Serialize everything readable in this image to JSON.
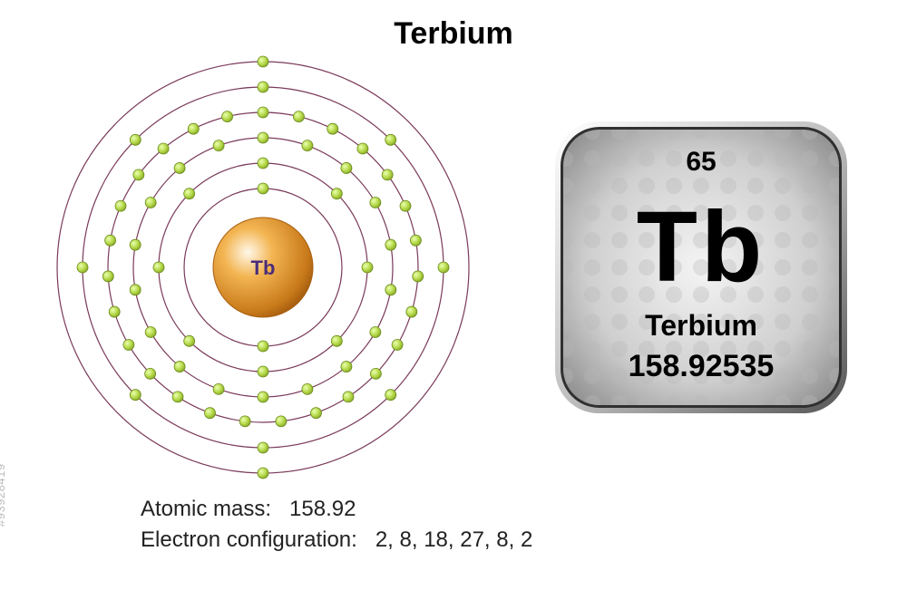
{
  "title": "Terbium",
  "atom": {
    "symbol": "Tb",
    "nucleus_color_inner": "#ffffff",
    "nucleus_color_mid": "#f3b552",
    "nucleus_color_outer": "#c97a1a",
    "nucleus_radius": 55,
    "nucleus_symbol_color": "#4a2e7a",
    "nucleus_symbol_fontsize": 22,
    "shells": [
      {
        "radius": 87,
        "electrons": 2
      },
      {
        "radius": 115,
        "electrons": 8
      },
      {
        "radius": 143,
        "electrons": 18
      },
      {
        "radius": 171,
        "electrons": 27
      },
      {
        "radius": 199,
        "electrons": 8
      },
      {
        "radius": 227,
        "electrons": 2
      }
    ],
    "shell_stroke": "#7a3a5a",
    "shell_stroke_width": 1.2,
    "electron_fill": "#b5d94a",
    "electron_stroke": "#6a8a1a",
    "electron_radius": 6
  },
  "info": {
    "atomic_mass_label": "Atomic mass:",
    "atomic_mass_value": "158.92",
    "electron_config_label": "Electron configuration:",
    "electron_config_value": "2, 8, 18, 27, 8, 2",
    "font_size": 24,
    "color": "#222222"
  },
  "tile": {
    "atomic_number": "65",
    "symbol": "Tb",
    "name": "Terbium",
    "mass": "158.92535",
    "corner_radius": 48,
    "bg_gradient_inner": "#f4f4f4",
    "bg_gradient_outer": "#7a7a7a",
    "border_highlight": "#ffffff",
    "border_shadow": "#555555",
    "text_color": "#000000",
    "number_fontsize": 30,
    "symbol_fontsize": 110,
    "name_fontsize": 32,
    "mass_fontsize": 34,
    "dot_color": "#b8b8b8"
  },
  "watermark": "#93928419"
}
